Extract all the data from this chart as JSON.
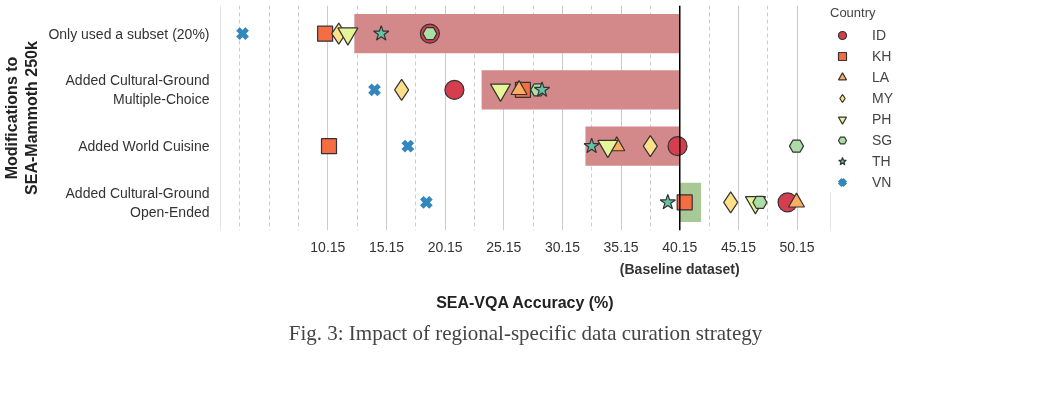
{
  "chart_data": {
    "type": "bar",
    "orientation": "horizontal",
    "xlabel": "SEA-VQA Accuracy (%)",
    "ylabel": "Modifications to\nSEA-Mammoth 250k",
    "legend_title": "Country",
    "categories": [
      "Only used a subset (20%)",
      "Added Cultural-Ground\nMultiple-Choice",
      "Added World Cuisine",
      "Added Cultural-Ground\nOpen-Ended"
    ],
    "base": [
      40.15,
      40.15,
      40.15,
      40.15
    ],
    "values": [
      -27.74,
      -16.89,
      -8.04,
      1.82
    ],
    "colors": [
      "#d3888a",
      "#d3888a",
      "#d3888a",
      "#a8c996"
    ],
    "series": [
      {
        "name": "ID",
        "type": "scatter",
        "marker": "circle",
        "color": "#d53e4f",
        "values": [
          18.85,
          20.94,
          39.96,
          49.34
        ]
      },
      {
        "name": "KH",
        "type": "scatter",
        "marker": "square",
        "color": "#f46d43",
        "values": [
          9.92,
          26.78,
          10.25,
          40.57
        ]
      },
      {
        "name": "LA",
        "type": "scatter",
        "marker": "triangle",
        "color": "#fdae61",
        "values": [
          null,
          26.45,
          34.78,
          50.1
        ]
      },
      {
        "name": "MY",
        "type": "scatter",
        "marker": "diamond",
        "color": "#fee08b",
        "values": [
          11.08,
          16.44,
          37.64,
          44.49
        ]
      },
      {
        "name": "PH",
        "type": "scatter",
        "color": "#e6f598",
        "values": [
          11.86,
          24.87,
          34.02,
          46.6
        ]
      },
      {
        "name": "SG",
        "type": "scatter",
        "color": "#abdda4",
        "values": [
          18.85,
          28.04,
          50.1,
          46.98
        ]
      },
      {
        "name": "TH",
        "type": "scatter",
        "marker": "star",
        "color": "#66c2a5",
        "values": [
          14.7,
          28.41,
          32.64,
          39.13
        ]
      },
      {
        "name": "VN",
        "type": "scatter",
        "marker": "x",
        "color": "#3288bd",
        "values": [
          2.88,
          14.13,
          16.97,
          18.55
        ]
      }
    ],
    "xlim": [
      1.0,
      53.0
    ],
    "xticks": [
      {
        "value": 2.65,
        "label": null
      },
      {
        "value": 5.15,
        "label": null
      },
      {
        "value": 7.65,
        "label": null
      },
      10.15,
      {
        "value": 12.65,
        "label": null
      },
      15.15,
      {
        "value": 17.65,
        "label": null
      },
      20.15,
      {
        "value": 22.65,
        "label": null
      },
      25.15,
      {
        "value": 27.65,
        "label": null
      },
      30.15,
      {
        "value": 32.65,
        "label": null
      },
      35.15,
      {
        "value": 37.65,
        "label": null
      },
      40.15,
      {
        "value": 42.65,
        "label": null
      },
      45.15,
      {
        "value": 47.65,
        "label": null
      },
      50.15
    ],
    "ref_lines": [
      {
        "axis": "x",
        "value": 40.15,
        "label": "(Baseline dataset)",
        "color": "#000000",
        "line_style": "solid"
      }
    ],
    "grid": "x",
    "legend": "right",
    "annotations": [
      "Fig. 3: Impact of regional-specific data curation strategy"
    ]
  }
}
